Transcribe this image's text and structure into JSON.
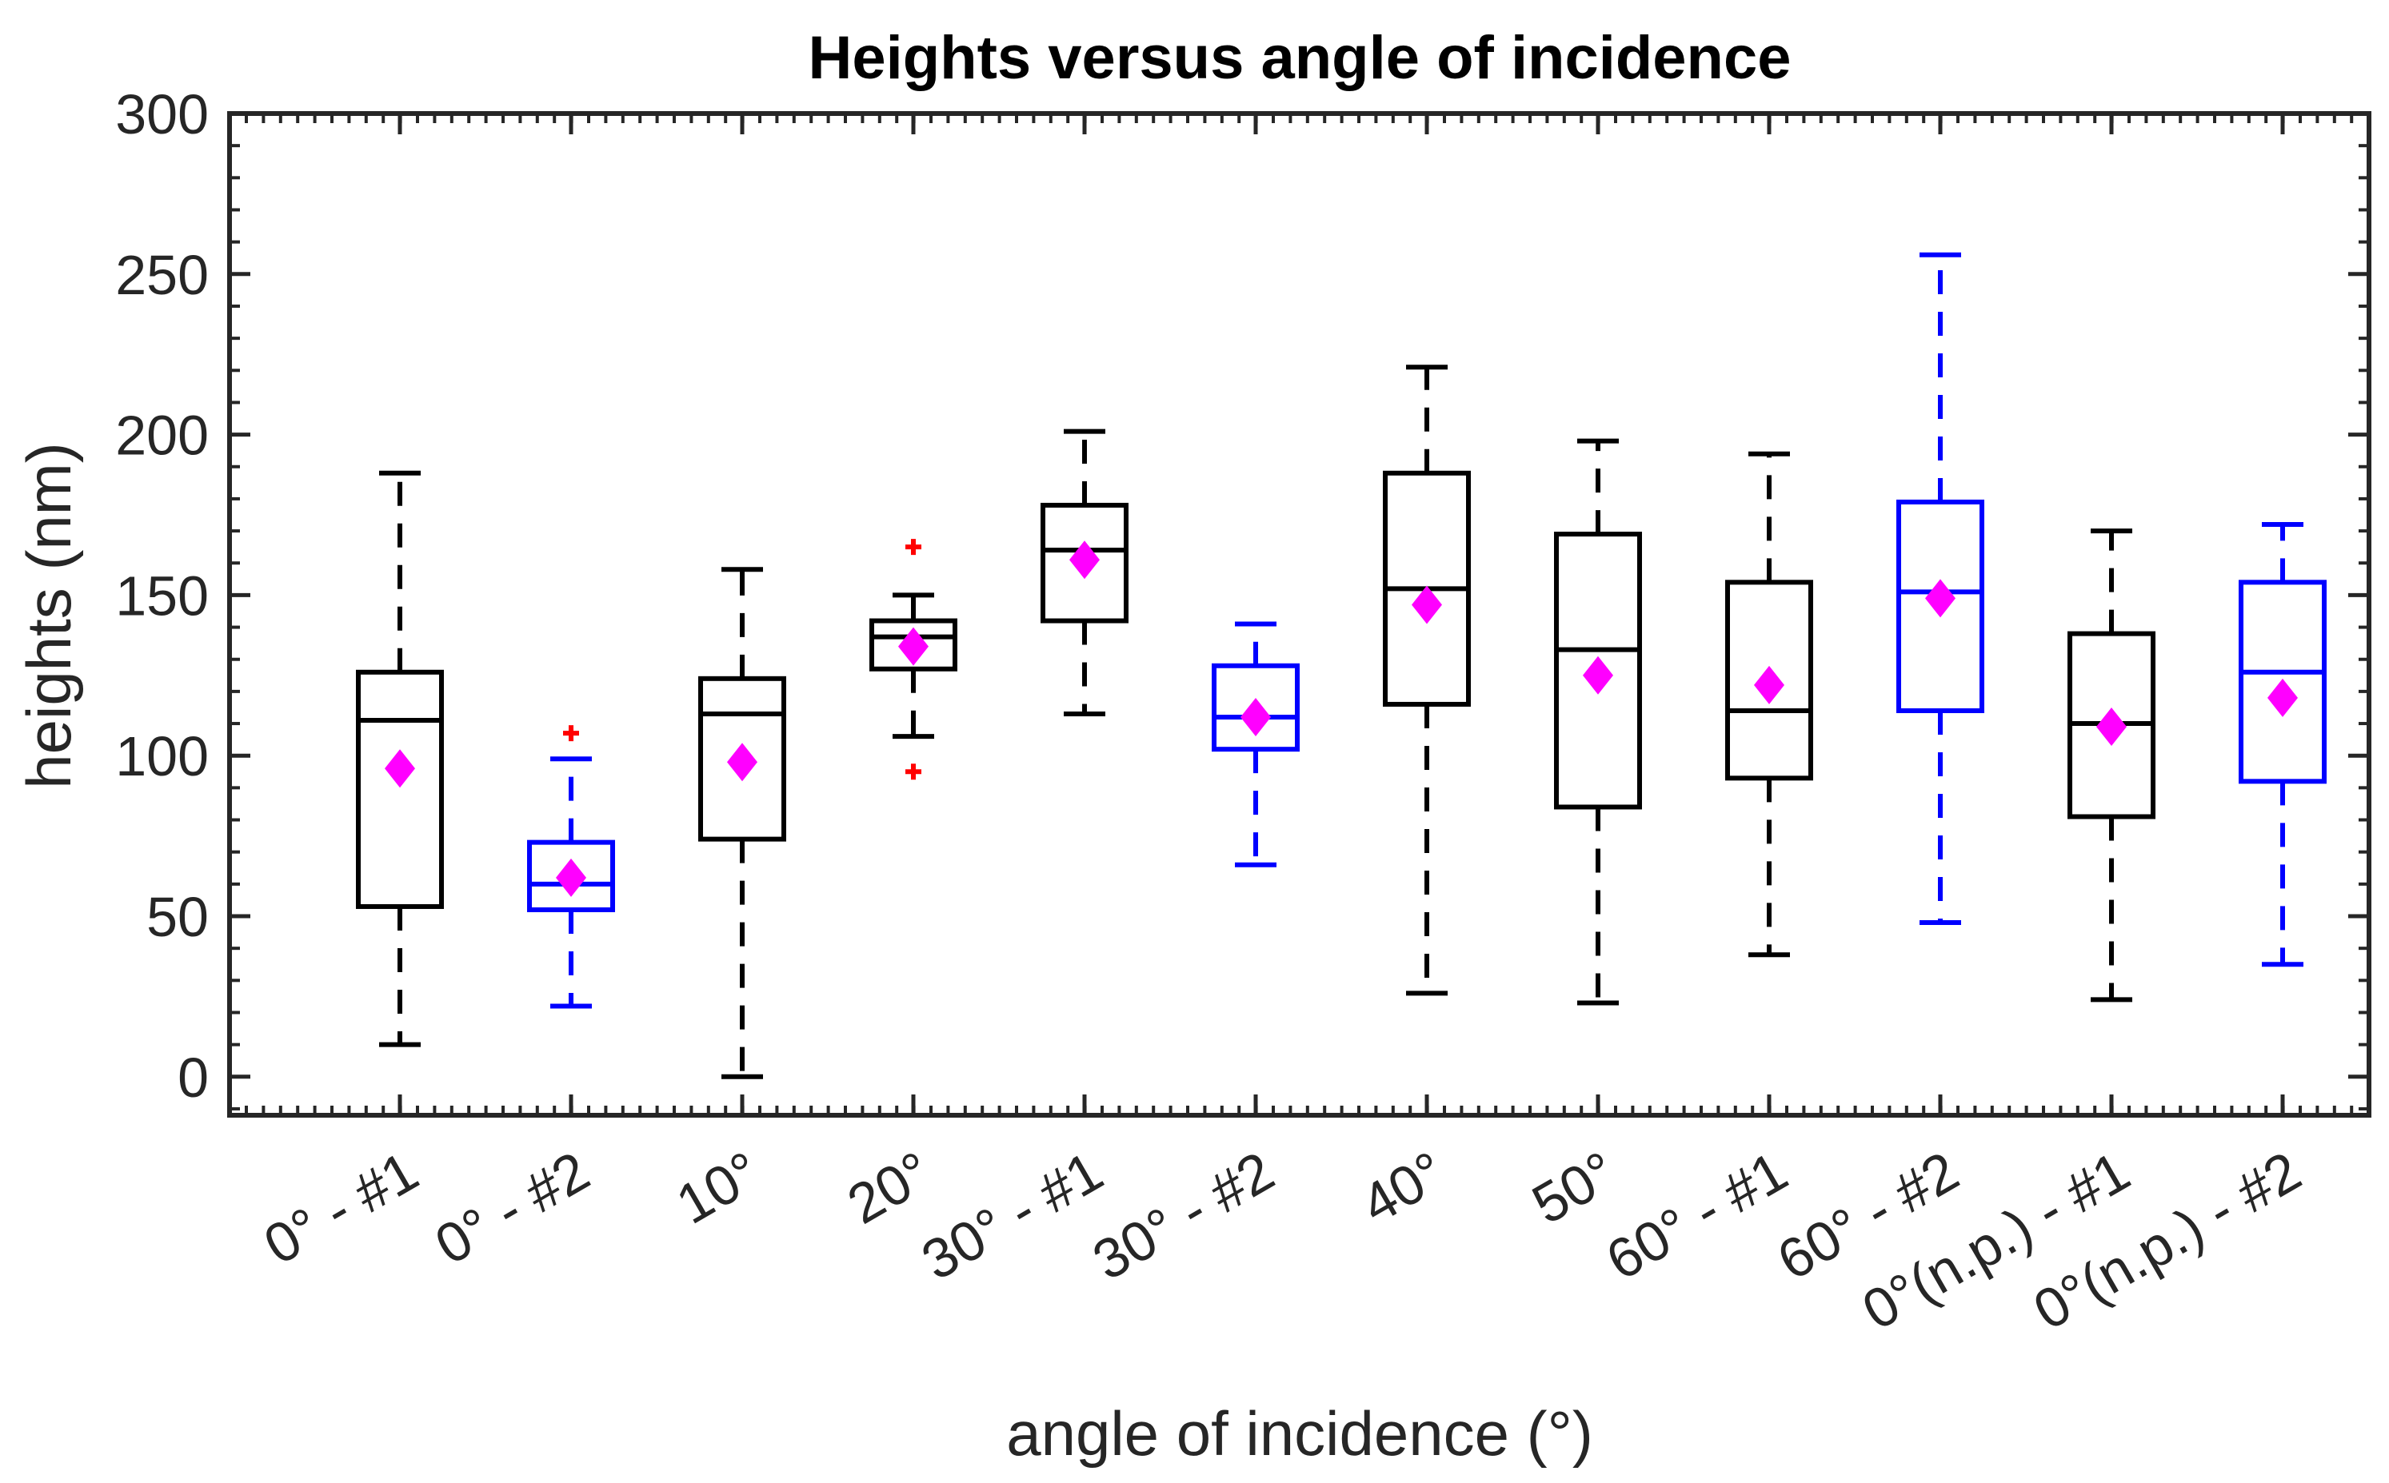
{
  "chart_data": {
    "type": "box",
    "title": "Heights versus angle of incidence",
    "xlabel": "angle of incidence (°)",
    "ylabel": "heights (nm)",
    "ylim": [
      -12,
      300
    ],
    "yticks": [
      0,
      50,
      100,
      150,
      200,
      250,
      300
    ],
    "colors": {
      "black": "#000000",
      "blue": "#0000ff",
      "mean": "#ff00ff",
      "outlier": "#ff0000"
    },
    "groups": [
      {
        "label": "0° - #1",
        "color": "black",
        "whisker_low": 10,
        "q1": 53,
        "median": 111,
        "q3": 126,
        "whisker_high": 188,
        "mean": 96,
        "outliers": []
      },
      {
        "label": "0° - #2",
        "color": "blue",
        "whisker_low": 22,
        "q1": 52,
        "median": 60,
        "q3": 73,
        "whisker_high": 99,
        "mean": 62,
        "outliers": [
          107
        ]
      },
      {
        "label": "10°",
        "color": "black",
        "whisker_low": 0,
        "q1": 74,
        "median": 113,
        "q3": 124,
        "whisker_high": 158,
        "mean": 98,
        "outliers": []
      },
      {
        "label": "20°",
        "color": "black",
        "whisker_low": 106,
        "q1": 127,
        "median": 137,
        "q3": 142,
        "whisker_high": 150,
        "mean": 134,
        "outliers": [
          165,
          95
        ]
      },
      {
        "label": "30° - #1",
        "color": "black",
        "whisker_low": 113,
        "q1": 142,
        "median": 164,
        "q3": 178,
        "whisker_high": 201,
        "mean": 161,
        "outliers": []
      },
      {
        "label": "30° - #2",
        "color": "blue",
        "whisker_low": 66,
        "q1": 102,
        "median": 112,
        "q3": 128,
        "whisker_high": 141,
        "mean": 112,
        "outliers": []
      },
      {
        "label": "40°",
        "color": "black",
        "whisker_low": 26,
        "q1": 116,
        "median": 152,
        "q3": 188,
        "whisker_high": 221,
        "mean": 147,
        "outliers": []
      },
      {
        "label": "50°",
        "color": "black",
        "whisker_low": 23,
        "q1": 84,
        "median": 133,
        "q3": 169,
        "whisker_high": 198,
        "mean": 125,
        "outliers": []
      },
      {
        "label": "60° - #1",
        "color": "black",
        "whisker_low": 38,
        "q1": 93,
        "median": 114,
        "q3": 154,
        "whisker_high": 194,
        "mean": 122,
        "outliers": []
      },
      {
        "label": "60° - #2",
        "color": "blue",
        "whisker_low": 48,
        "q1": 114,
        "median": 151,
        "q3": 179,
        "whisker_high": 256,
        "mean": 149,
        "outliers": []
      },
      {
        "label": "0°(n.p.) - #1",
        "color": "black",
        "whisker_low": 24,
        "q1": 81,
        "median": 110,
        "q3": 138,
        "whisker_high": 170,
        "mean": 109,
        "outliers": []
      },
      {
        "label": "0°(n.p.) - #2",
        "color": "blue",
        "whisker_low": 35,
        "q1": 92,
        "median": 126,
        "q3": 154,
        "whisker_high": 172,
        "mean": 118,
        "outliers": []
      }
    ]
  }
}
